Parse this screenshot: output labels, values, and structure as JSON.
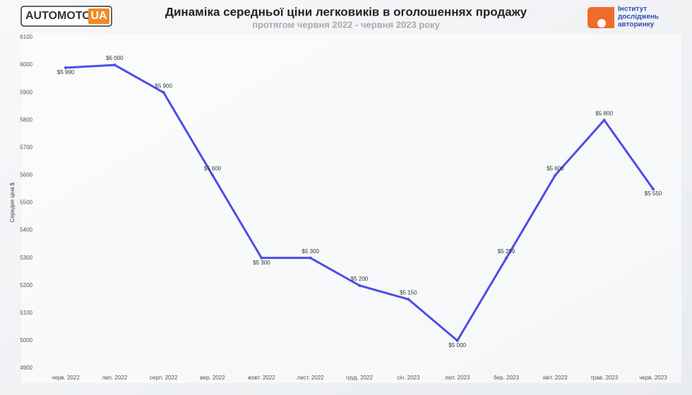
{
  "branding": {
    "logo_main": "AUTOMOTO",
    "logo_accent": "UA",
    "institute": [
      "Інститут",
      "досліджень",
      "авторинку"
    ]
  },
  "chart_data": {
    "type": "line",
    "title": "Динаміка середньої ціни легковиків в оголошеннях продажу",
    "subtitle": "протягом червня 2022 - червня 2023 року",
    "y_label": "Середня ціна $",
    "categories": [
      "черв. 2022",
      "лип. 2022",
      "серп. 2022",
      "вер. 2022",
      "жовт. 2022",
      "лист. 2022",
      "груд. 2022",
      "січ. 2023",
      "лют. 2023",
      "бер. 2023",
      "квіт. 2023",
      "трав. 2023",
      "черв. 2023"
    ],
    "values": [
      5990,
      6000,
      5900,
      5600,
      5300,
      5300,
      5200,
      5150,
      5000,
      5299,
      5600,
      5800,
      5550
    ],
    "value_labels": [
      "$5 990",
      "$6 000",
      "$5 900",
      "$5 600",
      "$5 300",
      "$5 300",
      "$5 200",
      "$5 150",
      "$5 000",
      "$5 299",
      "$5 600",
      "$5 800",
      "$5 550"
    ],
    "color": "#4d4de6",
    "ylim": [
      4900,
      6100
    ],
    "yticks": [
      4900,
      5000,
      5100,
      5200,
      5300,
      5400,
      5500,
      5600,
      5700,
      5800,
      5900,
      6000,
      6100
    ],
    "grid": false
  }
}
